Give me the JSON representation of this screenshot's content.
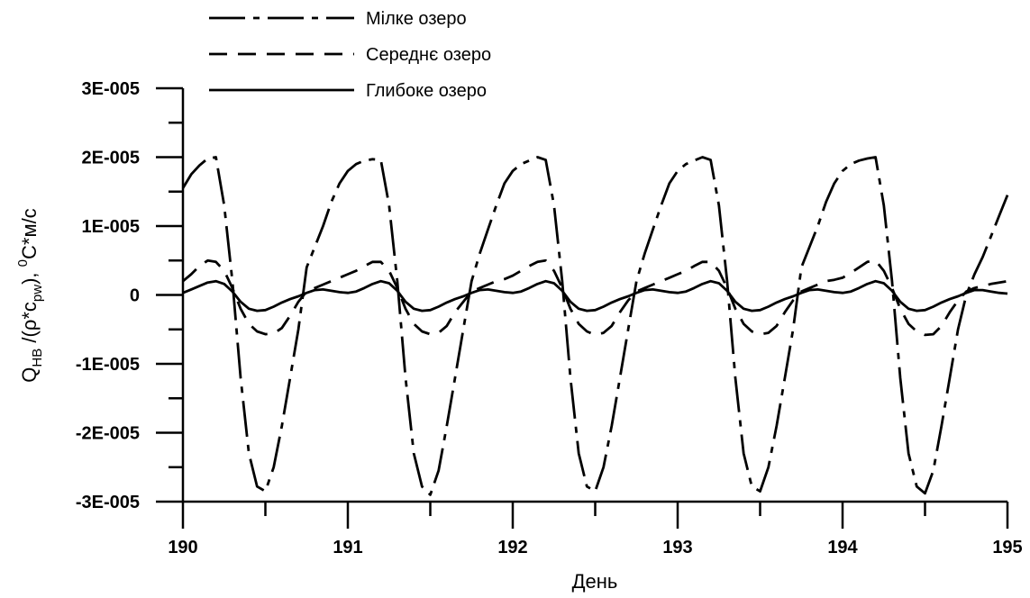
{
  "chart_data": {
    "type": "line",
    "title": "",
    "xlabel": "День",
    "ylabel_main": "Q",
    "ylabel_sub1": "HB",
    "ylabel_mid": " /(ρ*c",
    "ylabel_sub2": "pw",
    "ylabel_end": "),  ",
    "ylabel_sup": "0",
    "ylabel_unit": "C*м/с",
    "xlim": [
      190,
      195
    ],
    "ylim": [
      -3e-05,
      3e-05
    ],
    "x_ticks": [
      190,
      191,
      192,
      193,
      194,
      195
    ],
    "x_tick_labels": [
      "190",
      "191",
      "192",
      "193",
      "194",
      "195"
    ],
    "y_ticks": [
      3e-05,
      2e-05,
      1e-05,
      0,
      -1e-05,
      -2e-05,
      -3e-05
    ],
    "y_tick_labels": [
      "3E-005",
      "2E-005",
      "1E-005",
      "0",
      "-1E-005",
      "-2E-005",
      "-3E-005"
    ],
    "grid": false,
    "legend_position": "top-left",
    "series": [
      {
        "name": "Мілке озеро",
        "style": "long-short-dash",
        "color": "#000000",
        "x": [
          190.0,
          190.05,
          190.1,
          190.15,
          190.2,
          190.25,
          190.3,
          190.35,
          190.4,
          190.45,
          190.5,
          190.55,
          190.6,
          190.65,
          190.7,
          190.75,
          190.8,
          190.85,
          190.9,
          190.95,
          191.0,
          191.05,
          191.1,
          191.15,
          191.2,
          191.25,
          191.3,
          191.35,
          191.4,
          191.45,
          191.5,
          191.55,
          191.6,
          191.65,
          191.7,
          191.75,
          191.8,
          191.85,
          191.9,
          191.95,
          192.0,
          192.05,
          192.1,
          192.15,
          192.2,
          192.25,
          192.3,
          192.35,
          192.4,
          192.45,
          192.5,
          192.55,
          192.6,
          192.65,
          192.7,
          192.75,
          192.8,
          192.85,
          192.9,
          192.95,
          193.0,
          193.05,
          193.1,
          193.15,
          193.2,
          193.25,
          193.3,
          193.35,
          193.4,
          193.45,
          193.5,
          193.55,
          193.6,
          193.65,
          193.7,
          193.75,
          193.8,
          193.85,
          193.9,
          193.95,
          194.0,
          194.05,
          194.1,
          194.15,
          194.2,
          194.25,
          194.3,
          194.35,
          194.4,
          194.45,
          194.5,
          194.55,
          194.6,
          194.65,
          194.7,
          194.75,
          194.8,
          194.85,
          194.9,
          194.95,
          195.0
        ],
        "values": [
          1.55e-05,
          1.75e-05,
          1.88e-05,
          1.98e-05,
          2e-05,
          1.3e-05,
          2e-06,
          -1.2e-05,
          -2.3e-05,
          -2.78e-05,
          -2.85e-05,
          -2.5e-05,
          -1.9e-05,
          -1.2e-05,
          -5e-06,
          4e-06,
          7e-06,
          1e-05,
          1.35e-05,
          1.62e-05,
          1.8e-05,
          1.9e-05,
          1.95e-05,
          1.97e-05,
          1.96e-05,
          1.3e-05,
          2e-06,
          -1.2e-05,
          -2.3e-05,
          -2.78e-05,
          -2.9e-05,
          -2.55e-05,
          -1.9e-05,
          -1.2e-05,
          -5e-06,
          2e-06,
          6e-06,
          9.5e-06,
          1.3e-05,
          1.62e-05,
          1.8e-05,
          1.9e-05,
          1.95e-05,
          2e-05,
          1.96e-05,
          1.3e-05,
          2e-06,
          -1.2e-05,
          -2.3e-05,
          -2.78e-05,
          -2.85e-05,
          -2.5e-05,
          -1.9e-05,
          -1.2e-05,
          -5e-06,
          2e-06,
          6e-06,
          9.5e-06,
          1.3e-05,
          1.62e-05,
          1.8e-05,
          1.9e-05,
          1.95e-05,
          2e-05,
          1.96e-05,
          1.3e-05,
          2e-06,
          -1.2e-05,
          -2.3e-05,
          -2.78e-05,
          -2.85e-05,
          -2.5e-05,
          -1.9e-05,
          -1.2e-05,
          -5e-06,
          4e-06,
          7e-06,
          1e-05,
          1.35e-05,
          1.62e-05,
          1.8e-05,
          1.9e-05,
          1.95e-05,
          1.98e-05,
          2e-05,
          1.3e-05,
          2e-06,
          -1.2e-05,
          -2.3e-05,
          -2.78e-05,
          -2.88e-05,
          -2.55e-05,
          -1.9e-05,
          -1.2e-05,
          -5e-06,
          0.0,
          3e-06,
          5.5e-06,
          8.5e-06,
          1.15e-05,
          1.45e-05
        ]
      },
      {
        "name": "Середнє озеро",
        "style": "dashed",
        "color": "#000000",
        "x": [
          190.0,
          190.05,
          190.1,
          190.15,
          190.2,
          190.25,
          190.3,
          190.35,
          190.4,
          190.45,
          190.5,
          190.55,
          190.6,
          190.65,
          190.7,
          190.75,
          190.8,
          190.85,
          190.9,
          190.95,
          191.0,
          191.05,
          191.1,
          191.15,
          191.2,
          191.25,
          191.3,
          191.35,
          191.4,
          191.45,
          191.5,
          191.55,
          191.6,
          191.65,
          191.7,
          191.75,
          191.8,
          191.85,
          191.9,
          191.95,
          192.0,
          192.05,
          192.1,
          192.15,
          192.2,
          192.25,
          192.3,
          192.35,
          192.4,
          192.45,
          192.5,
          192.55,
          192.6,
          192.65,
          192.7,
          192.75,
          192.8,
          192.85,
          192.9,
          192.95,
          193.0,
          193.05,
          193.1,
          193.15,
          193.2,
          193.25,
          193.3,
          193.35,
          193.4,
          193.45,
          193.5,
          193.55,
          193.6,
          193.65,
          193.7,
          193.75,
          193.8,
          193.85,
          193.9,
          193.95,
          194.0,
          194.05,
          194.1,
          194.15,
          194.2,
          194.25,
          194.3,
          194.35,
          194.4,
          194.45,
          194.5,
          194.55,
          194.6,
          194.65,
          194.7,
          194.75,
          194.8,
          194.85,
          194.9,
          194.95,
          195.0
        ],
        "values": [
          2e-06,
          3e-06,
          4.2e-06,
          5e-06,
          4.8e-06,
          3.5e-06,
          1e-06,
          -2e-06,
          -4.2e-06,
          -5.3e-06,
          -5.7e-06,
          -5.6e-06,
          -4.8e-06,
          -3e-06,
          -1e-06,
          5e-07,
          1e-06,
          1.5e-06,
          2e-06,
          2.5e-06,
          3e-06,
          3.5e-06,
          4.2e-06,
          4.8e-06,
          4.8e-06,
          3.5e-06,
          1e-06,
          -2e-06,
          -4.2e-06,
          -5.3e-06,
          -5.7e-06,
          -5.5e-06,
          -4.5e-06,
          -2.5e-06,
          -1e-06,
          5e-07,
          1e-06,
          1.5e-06,
          2e-06,
          2.3e-06,
          2.8e-06,
          3.5e-06,
          4.2e-06,
          4.8e-06,
          5e-06,
          3.5e-06,
          1e-06,
          -2e-06,
          -4.2e-06,
          -5.3e-06,
          -5.8e-06,
          -5.5e-06,
          -4.5e-06,
          -2.5e-06,
          -8e-07,
          5e-07,
          1e-06,
          1.5e-06,
          2e-06,
          2.5e-06,
          3e-06,
          3.5e-06,
          4.2e-06,
          4.8e-06,
          4.8e-06,
          3.5e-06,
          1e-06,
          -2e-06,
          -4.2e-06,
          -5.3e-06,
          -5.7e-06,
          -5.5e-06,
          -4.5e-06,
          -2.5e-06,
          -8e-07,
          5e-07,
          1e-06,
          1.5e-06,
          2e-06,
          2.2e-06,
          2.5e-06,
          3.2e-06,
          4e-06,
          4.8e-06,
          5e-06,
          3.5e-06,
          1e-06,
          -2e-06,
          -4.2e-06,
          -5.3e-06,
          -5.8e-06,
          -5.7e-06,
          -4.5e-06,
          -2.5e-06,
          -8e-07,
          5e-07,
          1e-06,
          1.3e-06,
          1.6e-06,
          1.8e-06,
          2e-06
        ]
      },
      {
        "name": "Глибоке озеро",
        "style": "solid",
        "color": "#000000",
        "x": [
          190.0,
          190.05,
          190.1,
          190.15,
          190.2,
          190.25,
          190.3,
          190.35,
          190.4,
          190.45,
          190.5,
          190.55,
          190.6,
          190.65,
          190.7,
          190.75,
          190.8,
          190.85,
          190.9,
          190.95,
          191.0,
          191.05,
          191.1,
          191.15,
          191.2,
          191.25,
          191.3,
          191.35,
          191.4,
          191.45,
          191.5,
          191.55,
          191.6,
          191.65,
          191.7,
          191.75,
          191.8,
          191.85,
          191.9,
          191.95,
          192.0,
          192.05,
          192.1,
          192.15,
          192.2,
          192.25,
          192.3,
          192.35,
          192.4,
          192.45,
          192.5,
          192.55,
          192.6,
          192.65,
          192.7,
          192.75,
          192.8,
          192.85,
          192.9,
          192.95,
          193.0,
          193.05,
          193.1,
          193.15,
          193.2,
          193.25,
          193.3,
          193.35,
          193.4,
          193.45,
          193.5,
          193.55,
          193.6,
          193.65,
          193.7,
          193.75,
          193.8,
          193.85,
          193.9,
          193.95,
          194.0,
          194.05,
          194.1,
          194.15,
          194.2,
          194.25,
          194.3,
          194.35,
          194.4,
          194.45,
          194.5,
          194.55,
          194.6,
          194.65,
          194.7,
          194.75,
          194.8,
          194.85,
          194.9,
          194.95,
          195.0
        ],
        "values": [
          3e-07,
          8e-07,
          1.3e-06,
          1.8e-06,
          2e-06,
          1.6e-06,
          5e-07,
          -1e-06,
          -2e-06,
          -2.3e-06,
          -2.2e-06,
          -1.7e-06,
          -1.1e-06,
          -6e-07,
          -2e-07,
          3e-07,
          7e-07,
          8e-07,
          6e-07,
          4e-07,
          3e-07,
          5e-07,
          1e-06,
          1.6e-06,
          2e-06,
          1.7e-06,
          6e-07,
          -1e-06,
          -2e-06,
          -2.3e-06,
          -2.2e-06,
          -1.7e-06,
          -1.1e-06,
          -6e-07,
          -2e-07,
          3e-07,
          7e-07,
          8e-07,
          6e-07,
          4e-07,
          3e-07,
          5e-07,
          1e-06,
          1.6e-06,
          2e-06,
          1.7e-06,
          6e-07,
          -1e-06,
          -2e-06,
          -2.3e-06,
          -2.2e-06,
          -1.7e-06,
          -1.1e-06,
          -6e-07,
          -2e-07,
          3e-07,
          7e-07,
          8e-07,
          6e-07,
          4e-07,
          3e-07,
          5e-07,
          1e-06,
          1.6e-06,
          2e-06,
          1.7e-06,
          6e-07,
          -1e-06,
          -2e-06,
          -2.3e-06,
          -2.2e-06,
          -1.7e-06,
          -1.1e-06,
          -6e-07,
          -2e-07,
          3e-07,
          7e-07,
          8e-07,
          6e-07,
          4e-07,
          3e-07,
          5e-07,
          1e-06,
          1.6e-06,
          2e-06,
          1.7e-06,
          6e-07,
          -1e-06,
          -2e-06,
          -2.3e-06,
          -2.2e-06,
          -1.7e-06,
          -1.1e-06,
          -6e-07,
          -2e-07,
          3e-07,
          7e-07,
          7e-07,
          5e-07,
          3e-07,
          2e-07
        ]
      }
    ]
  }
}
